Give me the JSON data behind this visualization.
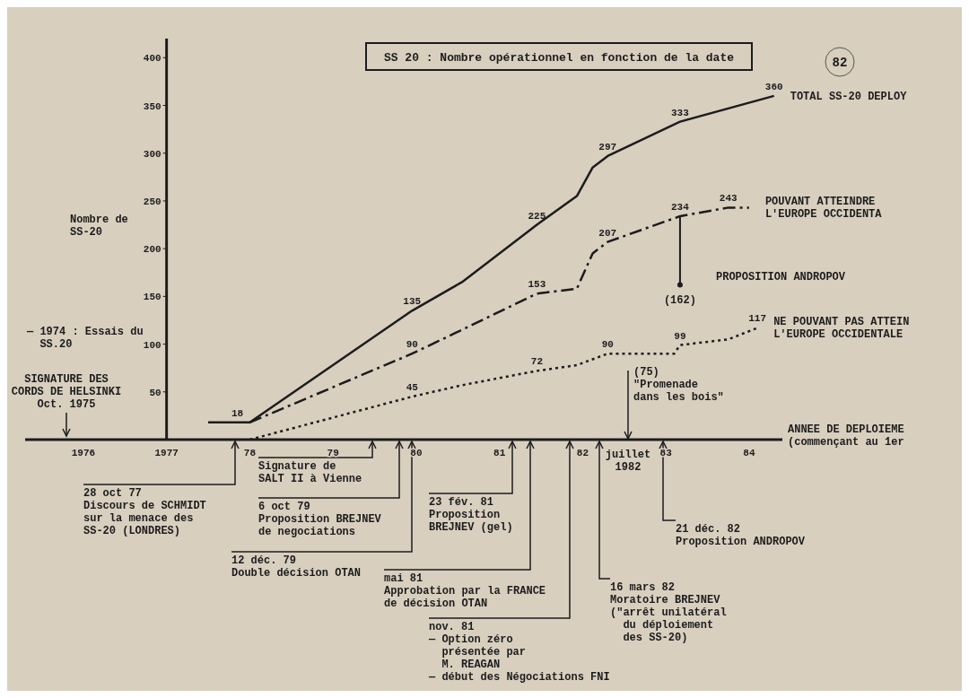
{
  "chart_data": {
    "type": "line",
    "title": "SS 20 : Nombre opérationnel en fonction de la date",
    "ylabel": "Nombre de\nSS-20",
    "xlabel": "ANNEE DE DEPLOIEME\n(commençant au 1er",
    "xlim": [
      1975.3,
      1984.4
    ],
    "ylim": [
      0,
      420
    ],
    "xticks": [
      {
        "value": 1976,
        "label": "1976"
      },
      {
        "value": 1977,
        "label": "1977"
      },
      {
        "value": 1978,
        "label": "78"
      },
      {
        "value": 1979,
        "label": "79"
      },
      {
        "value": 1980,
        "label": "80"
      },
      {
        "value": 1981,
        "label": "81"
      },
      {
        "value": 1982,
        "label": "82"
      },
      {
        "value": 1983,
        "label": "83"
      },
      {
        "value": 1984,
        "label": "84"
      }
    ],
    "yticks": [
      50,
      100,
      150,
      200,
      250,
      300,
      350,
      400
    ],
    "series": [
      {
        "name": "TOTAL SS-20 DEPLOY",
        "color": "#1c1c1c",
        "line_style": "solid",
        "x": [
          1977.5,
          1977.85,
          1978.0,
          1979.95,
          1980.55,
          1981.45,
          1981.93,
          1982.12,
          1982.3,
          1983.17,
          1984.3
        ],
        "values": [
          18,
          18,
          18,
          135,
          165,
          225,
          255,
          285,
          297,
          333,
          360
        ],
        "value_labels": [
          null,
          "18",
          null,
          "135",
          null,
          "225",
          null,
          null,
          "297",
          "333",
          "360"
        ]
      },
      {
        "name": "POUVANT ATTEINDRE\nL'EUROPE OCCIDENTA",
        "color": "#1c1c1c",
        "line_style": "dashed",
        "x": [
          1978.0,
          1979.95,
          1980.55,
          1981.45,
          1981.93,
          1982.12,
          1982.3,
          1983.17,
          1983.75,
          1984.0
        ],
        "values": [
          18,
          90,
          115,
          153,
          158,
          195,
          207,
          234,
          243,
          243
        ],
        "value_labels": [
          null,
          "90",
          null,
          "153",
          null,
          null,
          "207",
          "234",
          "243",
          null
        ]
      },
      {
        "name": "NE POUVANT PAS ATTEIN\nL'EUROPE OCCIDENTALE",
        "color": "#1c1c1c",
        "line_style": "dotted",
        "x": [
          1978.0,
          1979.95,
          1980.55,
          1981.45,
          1981.93,
          1982.3,
          1983.1,
          1983.17,
          1983.75,
          1984.1
        ],
        "values": [
          0,
          45,
          57,
          72,
          78,
          90,
          90,
          99,
          105,
          117
        ],
        "value_labels": [
          null,
          "45",
          null,
          "72",
          null,
          "90",
          null,
          "99",
          null,
          "117"
        ]
      },
      {
        "type": "scatter",
        "color": "#1c1c1c",
        "marker": "circle",
        "x": [
          1983.17
        ],
        "values": [
          162
        ],
        "value_labels": [
          "(162)"
        ]
      }
    ],
    "annotations": [
      "28 oct 77\nDiscours de SCHMIDT\nsur la menace des\nSS-20 (LONDRES)",
      "Signature de\nSALT II à Vienne",
      "6 oct 79\nProposition BREJNEV\nde negociations",
      "12 déc. 79\nDouble décision OTAN",
      "23 fév. 81\nProposition\nBREJNEV (gel)",
      "mai 81\nApprobation par la FRANCE\nde décision OTAN",
      "nov. 81\n— Option zéro\n  présentée par\n  M. REAGAN\n— début des Négociations FNI",
      "16 mars 82\nMoratoire BREJNEV\n(\"arrêt unilatéral\n  du déploiement\n  des SS-20)",
      "21 déc. 82\nProposition ANDROPOV",
      "— 1974 : Essais du\n  SS.20",
      "SIGNATURE DES\nCORDS DE HELSINKI\nOct. 1975",
      "(75)\n\"Promenade\ndans les bois\"",
      "juillet\n1982",
      "PROPOSITION ANDROPOV",
      "82"
    ]
  }
}
